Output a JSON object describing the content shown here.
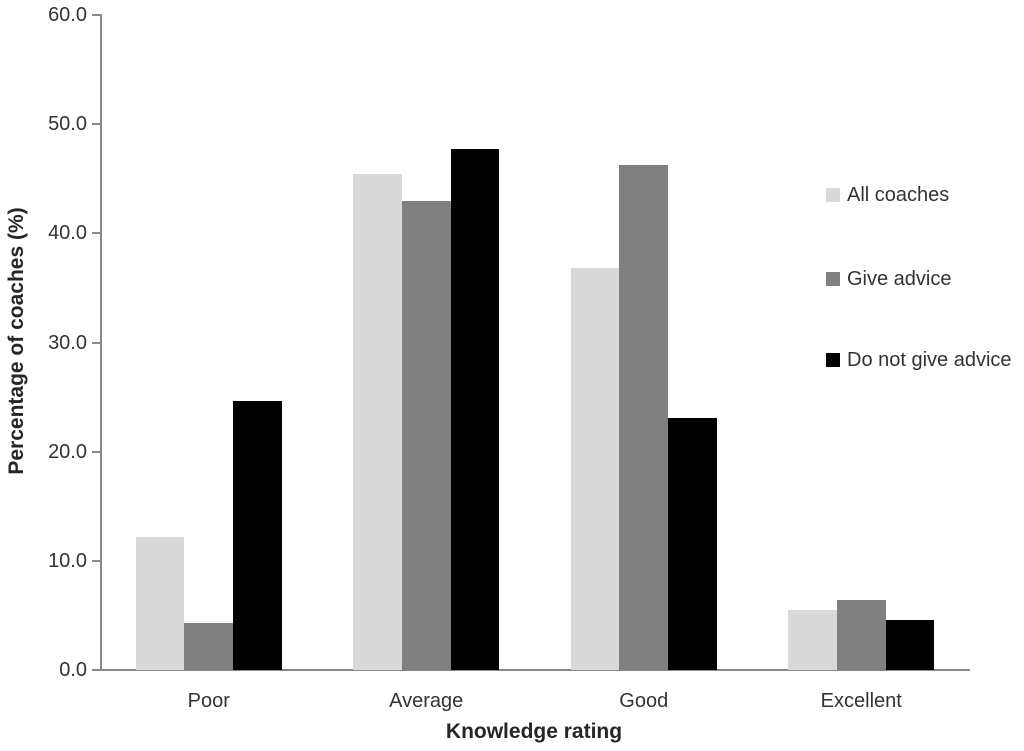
{
  "chart_data": {
    "type": "bar",
    "title": "",
    "xlabel": "Knowledge rating",
    "ylabel": "Percentage of coaches (%)",
    "ylim": [
      0,
      60
    ],
    "ytick_step": 10,
    "ytick_decimals": 1,
    "grid": false,
    "legend_position": "right",
    "categories": [
      "Poor",
      "Average",
      "Good",
      "Excellent"
    ],
    "series": [
      {
        "name": "All coaches",
        "color": "#d9d9d9",
        "values": [
          12.2,
          45.4,
          36.8,
          5.5
        ]
      },
      {
        "name": "Give advice",
        "color": "#808080",
        "values": [
          4.3,
          43.0,
          46.3,
          6.4
        ]
      },
      {
        "name": "Do not give advice",
        "color": "#000000",
        "values": [
          24.6,
          47.7,
          23.1,
          4.6
        ]
      }
    ]
  },
  "colors": {
    "axis": "#898989",
    "text": "#333333",
    "background": "#ffffff"
  }
}
